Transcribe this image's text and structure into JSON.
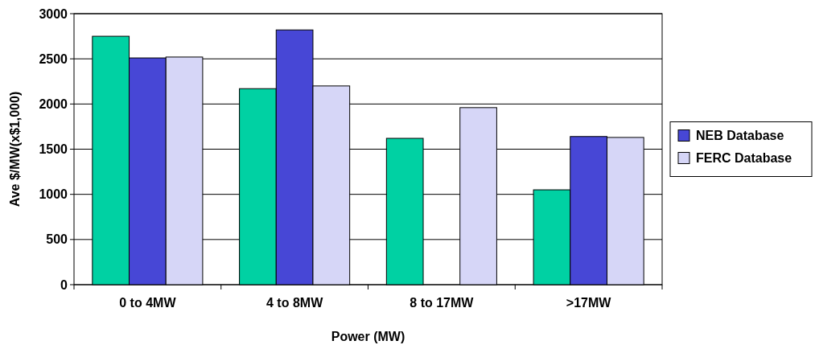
{
  "chart_data": {
    "type": "bar",
    "xlabel": "Power (MW)",
    "ylabel": "Ave $/MW(x$1,000)",
    "categories": [
      "0 to 4MW",
      "4 to 8MW",
      "8 to 17MW",
      ">17MW"
    ],
    "series": [
      {
        "color": "#00d1a3",
        "values": [
          2750,
          2170,
          1620,
          1050
        ]
      },
      {
        "name": "NEB Database",
        "color": "#4747d6",
        "values": [
          2510,
          2820,
          null,
          1640
        ]
      },
      {
        "name": "FERC Database",
        "color": "#d6d6f7",
        "values": [
          2520,
          2200,
          1960,
          1630
        ]
      }
    ],
    "ylim": [
      0,
      3000
    ],
    "yticks": [
      0,
      500,
      1000,
      1500,
      2000,
      2500,
      3000
    ],
    "grid": "y",
    "legend": "right"
  }
}
